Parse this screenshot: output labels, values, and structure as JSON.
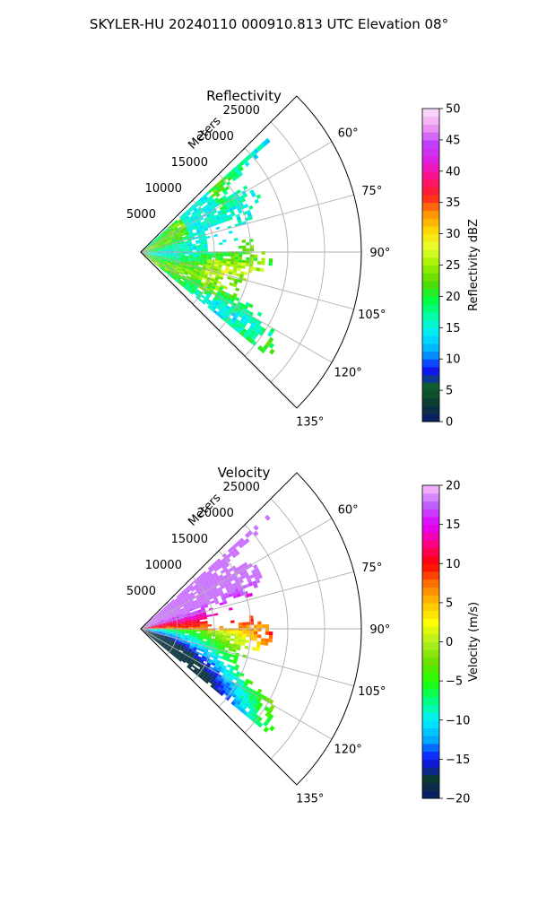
{
  "figure": {
    "title": "SKYLER-HU  20240110  000910.813 UTC Elevation 08°"
  },
  "colors": {
    "grid": "#b0b0b0",
    "reflectivity_scale": [
      "#0a1a6e",
      "#0c3a33",
      "#0f5e2a",
      "#1010ff",
      "#00a8ff",
      "#00e8ff",
      "#00ffb0",
      "#00ff40",
      "#55d800",
      "#9ef000",
      "#e8ff30",
      "#ffd800",
      "#ff9000",
      "#ff2020",
      "#ff1080",
      "#e020e0",
      "#c040ff",
      "#f0a0f0",
      "#fbe0fb"
    ],
    "velocity_scale": [
      "#0a1a6e",
      "#0c3a33",
      "#1010ff",
      "#00a8ff",
      "#00f0ff",
      "#00ff80",
      "#20ff00",
      "#70e000",
      "#b0f020",
      "#ffff00",
      "#ffc000",
      "#ff7000",
      "#ff0000",
      "#ff0080",
      "#e000ff",
      "#c060ff",
      "#f8c0f8"
    ]
  },
  "chart_data": [
    {
      "type": "ppi-sector",
      "title": "Reflectivity",
      "radial_axis_label": "Meters",
      "radial_ticks": [
        "5000",
        "10000",
        "15000",
        "20000",
        "25000"
      ],
      "radial_ticks_values": [
        5000,
        10000,
        15000,
        20000,
        25000
      ],
      "angular_ticks": [
        "60°",
        "75°",
        "90°",
        "105°",
        "120°",
        "135°"
      ],
      "angular_ticks_values": [
        60,
        75,
        90,
        105,
        120,
        135
      ],
      "azimuth_range_deg": [
        45,
        135
      ],
      "rlim": [
        0,
        30000
      ],
      "grid": true,
      "colorbar": {
        "label": "Reflectivity dBZ",
        "vmin": 0,
        "vmax": 50,
        "ticks": [
          "0",
          "5",
          "10",
          "15",
          "20",
          "25",
          "30",
          "35",
          "40",
          "45",
          "50"
        ]
      },
      "echo": {
        "value_range": [
          10,
          27
        ],
        "dominant_value": 20,
        "azimuth_extent_deg": [
          48,
          128
        ],
        "max_range_m": [
          23000,
          14000,
          17000,
          18000,
          17000,
          15000,
          12000,
          15000,
          17000,
          18000,
          16500,
          15000,
          13500,
          14500,
          20000,
          21500,
          22500
        ]
      }
    },
    {
      "type": "ppi-sector",
      "title": "Velocity",
      "radial_axis_label": "Meters",
      "radial_ticks": [
        "5000",
        "10000",
        "15000",
        "20000",
        "25000"
      ],
      "radial_ticks_values": [
        5000,
        10000,
        15000,
        20000,
        25000
      ],
      "angular_ticks": [
        "60°",
        "75°",
        "90°",
        "105°",
        "120°",
        "135°"
      ],
      "angular_ticks_values": [
        60,
        75,
        90,
        105,
        120,
        135
      ],
      "azimuth_range_deg": [
        45,
        135
      ],
      "rlim": [
        0,
        30000
      ],
      "grid": true,
      "colorbar": {
        "label": "Velocity (m/s)",
        "vmin": -20,
        "vmax": 20,
        "ticks": [
          "−20",
          "−15",
          "−10",
          "−5",
          "0",
          "5",
          "10",
          "15",
          "20"
        ]
      },
      "echo": {
        "value_range": [
          -18,
          18
        ],
        "azimuth_extent_deg": [
          48,
          128
        ],
        "max_range_m": [
          23000,
          14000,
          17000,
          18000,
          17000,
          15000,
          12000,
          15000,
          17000,
          18000,
          16500,
          15000,
          13500,
          14500,
          20000,
          21500,
          22500
        ]
      }
    }
  ]
}
